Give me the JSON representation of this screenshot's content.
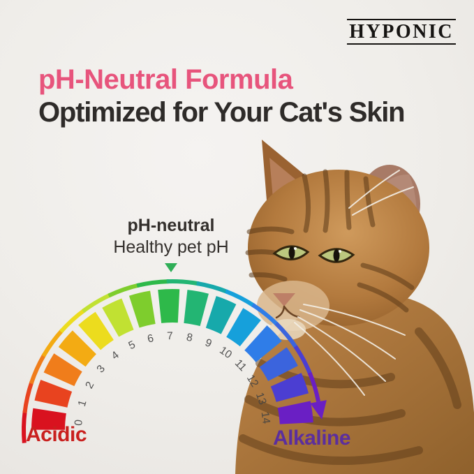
{
  "brand": {
    "name": "HYPONIC"
  },
  "headline": {
    "line1": "pH-Neutral Formula",
    "line2": "Optimized for Your Cat's Skin"
  },
  "callout": {
    "title": "pH-neutral",
    "subtitle": "Healthy pet pH"
  },
  "colors": {
    "accent_pink": "#e7547c",
    "heading_dark": "#2e2b29",
    "acidic_red": "#c9201e",
    "alkaline_purple": "#5b2e9e",
    "pointer_green": "#2fae57",
    "tick_text": "#424242",
    "background": "#efede9"
  },
  "cat": {
    "description": "brown tabby cat photo, facing left"
  },
  "chart_data": {
    "type": "gauge",
    "title": "pH color scale arc",
    "scale_min": 0,
    "scale_max": 14,
    "tick_labels": [
      "0",
      "1",
      "2",
      "3",
      "4",
      "5",
      "6",
      "7",
      "8",
      "9",
      "10",
      "11",
      "12",
      "13",
      "14"
    ],
    "segment_colors": [
      "#d9121f",
      "#e8431f",
      "#f07d1b",
      "#f3ab13",
      "#ecdc1e",
      "#c1e132",
      "#7ecd2d",
      "#2eb94a",
      "#23b573",
      "#17a9ab",
      "#16a0db",
      "#2f7de8",
      "#3b64dd",
      "#4b3ed2",
      "#6a1fc4"
    ],
    "arc_span_degrees": 180,
    "left_label": "Acidic",
    "right_label": "Alkaline",
    "pointer": {
      "label": "pH-neutral",
      "sublabel": "Healthy pet pH",
      "points_at_value": 7
    }
  }
}
